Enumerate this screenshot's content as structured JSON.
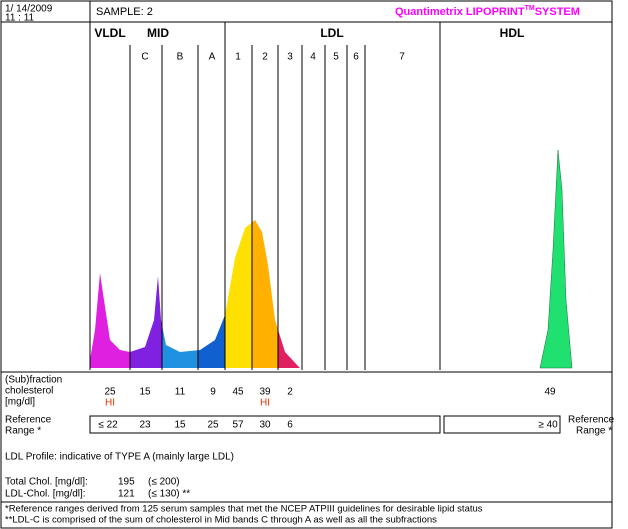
{
  "header": {
    "date": "1/ 14/2009",
    "time": "11 : 11",
    "sample": "SAMPLE:  2",
    "brand": "Quantimetrix LIPOPRINT",
    "tm": "TM",
    "system": "SYSTEM"
  },
  "bands": [
    "VLDL",
    "MID",
    "LDL",
    "HDL"
  ],
  "subbands": [
    "C",
    "B",
    "A",
    "1",
    "2",
    "3",
    "4",
    "5",
    "6",
    "7"
  ],
  "fraction_label": [
    "(Sub)fraction",
    "cholesterol",
    "[mg/dl]"
  ],
  "fractions": [
    25,
    15,
    11,
    9,
    45,
    39,
    2,
    49
  ],
  "flags": [
    "HI",
    "HI"
  ],
  "reference_label": [
    "Reference",
    "Range *"
  ],
  "reference": [
    "≤ 22",
    23,
    15,
    25,
    57,
    30,
    6
  ],
  "hdl_reference": "≥ 40",
  "ldl_profile": "LDL Profile:  indicative of TYPE A  (mainly large LDL)",
  "totals": [
    {
      "label": "Total Chol. [mg/dl]:",
      "value": 195,
      "range": "(≤ 200)"
    },
    {
      "label": "LDL-Chol. [mg/dl]:",
      "value": 121,
      "range": "(≤ 130) **"
    }
  ],
  "footnotes": [
    "*Reference ranges derived from 125 serum samples that met the NCEP ATPIII guidelines for desirable lipid status",
    "**LDL-C is comprised of the sum of cholesterol in Mid bands C through A as well as all the subfractions"
  ]
}
